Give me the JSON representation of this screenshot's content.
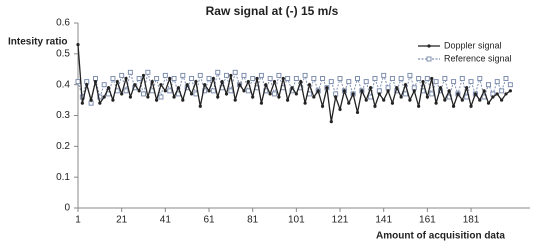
{
  "chart_data": {
    "type": "line",
    "title": "Raw signal at (-) 15 m/s",
    "y_label": "Intesity ratio",
    "x_label": "Amount of acquisition data",
    "x": [
      1,
      3,
      5,
      7,
      9,
      11,
      13,
      15,
      17,
      19,
      21,
      23,
      25,
      27,
      29,
      31,
      33,
      35,
      37,
      39,
      41,
      43,
      45,
      47,
      49,
      51,
      53,
      55,
      57,
      59,
      61,
      63,
      65,
      67,
      69,
      71,
      73,
      75,
      77,
      79,
      81,
      83,
      85,
      87,
      89,
      91,
      93,
      95,
      97,
      99,
      101,
      103,
      105,
      107,
      109,
      111,
      113,
      115,
      117,
      119,
      121,
      123,
      125,
      127,
      129,
      131,
      133,
      135,
      137,
      139,
      141,
      143,
      145,
      147,
      149,
      151,
      153,
      155,
      157,
      159,
      161,
      163,
      165,
      167,
      169,
      171,
      173,
      175,
      177,
      179,
      181,
      183,
      185,
      187,
      189,
      191,
      193,
      195,
      197,
      199
    ],
    "series": [
      {
        "name": "Doppler signal",
        "color": "#222222",
        "marker": "circle",
        "dash": false,
        "values": [
          0.53,
          0.34,
          0.4,
          0.35,
          0.41,
          0.34,
          0.36,
          0.39,
          0.35,
          0.41,
          0.37,
          0.42,
          0.36,
          0.4,
          0.38,
          0.43,
          0.36,
          0.41,
          0.35,
          0.4,
          0.38,
          0.42,
          0.36,
          0.39,
          0.35,
          0.4,
          0.37,
          0.41,
          0.33,
          0.4,
          0.38,
          0.42,
          0.36,
          0.41,
          0.37,
          0.43,
          0.35,
          0.4,
          0.38,
          0.41,
          0.36,
          0.42,
          0.34,
          0.4,
          0.37,
          0.41,
          0.36,
          0.42,
          0.35,
          0.39,
          0.37,
          0.41,
          0.34,
          0.4,
          0.36,
          0.38,
          0.33,
          0.39,
          0.28,
          0.36,
          0.32,
          0.38,
          0.34,
          0.37,
          0.31,
          0.38,
          0.35,
          0.39,
          0.33,
          0.37,
          0.35,
          0.38,
          0.34,
          0.39,
          0.36,
          0.4,
          0.35,
          0.38,
          0.33,
          0.41,
          0.36,
          0.42,
          0.34,
          0.39,
          0.35,
          0.38,
          0.33,
          0.37,
          0.35,
          0.39,
          0.33,
          0.37,
          0.35,
          0.38,
          0.34,
          0.36,
          0.37,
          0.35,
          0.37,
          0.38
        ]
      },
      {
        "name": "Reference signal",
        "color": "#7f8fb0",
        "marker": "square",
        "dash": true,
        "values": [
          0.41,
          0.36,
          0.41,
          0.34,
          0.42,
          0.36,
          0.4,
          0.37,
          0.42,
          0.38,
          0.43,
          0.38,
          0.44,
          0.39,
          0.42,
          0.37,
          0.44,
          0.38,
          0.42,
          0.36,
          0.43,
          0.38,
          0.42,
          0.37,
          0.43,
          0.39,
          0.42,
          0.37,
          0.43,
          0.38,
          0.42,
          0.38,
          0.44,
          0.39,
          0.43,
          0.38,
          0.44,
          0.4,
          0.43,
          0.38,
          0.42,
          0.39,
          0.43,
          0.38,
          0.42,
          0.37,
          0.43,
          0.39,
          0.42,
          0.38,
          0.42,
          0.39,
          0.43,
          0.37,
          0.42,
          0.38,
          0.42,
          0.39,
          0.41,
          0.37,
          0.42,
          0.38,
          0.41,
          0.37,
          0.42,
          0.38,
          0.41,
          0.36,
          0.42,
          0.38,
          0.43,
          0.39,
          0.42,
          0.38,
          0.42,
          0.37,
          0.43,
          0.39,
          0.42,
          0.38,
          0.42,
          0.37,
          0.41,
          0.38,
          0.42,
          0.36,
          0.41,
          0.37,
          0.42,
          0.36,
          0.41,
          0.37,
          0.42,
          0.36,
          0.4,
          0.37,
          0.41,
          0.38,
          0.42,
          0.4
        ]
      }
    ],
    "xlim": [
      1,
      208
    ],
    "xticks": [
      1,
      21,
      41,
      61,
      81,
      101,
      121,
      141,
      161,
      181
    ],
    "ylim": [
      0,
      0.6
    ],
    "yticks": [
      0,
      0.1,
      0.2,
      0.3,
      0.4,
      0.5,
      0.6
    ],
    "grid": false,
    "legend": "upper right"
  }
}
